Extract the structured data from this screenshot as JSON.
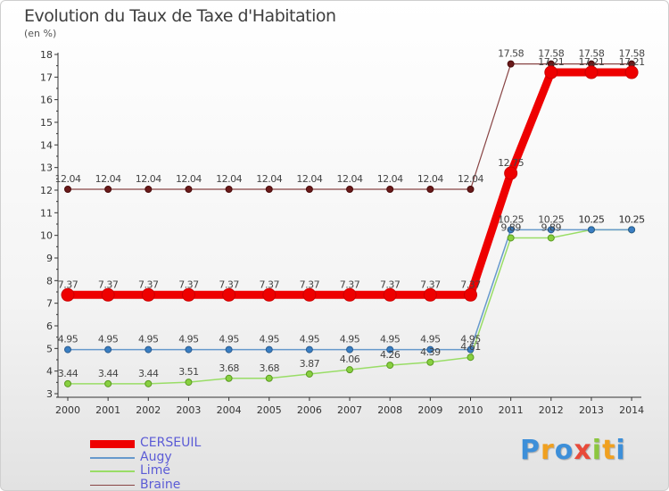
{
  "title": "Evolution du Taux de Taxe d'Habitation",
  "subtitle": "(en %)",
  "logo": {
    "letters": [
      "P",
      "r",
      "o",
      "x",
      "i",
      "t",
      "i"
    ],
    "colors": [
      "#3d8fd9",
      "#f0a020",
      "#3d8fd9",
      "#e84a3a",
      "#8cc63f",
      "#f0a020",
      "#3d8fd9"
    ]
  },
  "chart_data": {
    "type": "line",
    "title": "Evolution du Taux de Taxe d'Habitation",
    "ylabel": "(en %)",
    "xlabel": "",
    "ylim": [
      3,
      18
    ],
    "y_ticks": [
      "3",
      "4",
      "5",
      "6",
      "7",
      "8",
      "9",
      "10",
      "11",
      "12",
      "13",
      "14",
      "15",
      "16",
      "17",
      "18"
    ],
    "x": [
      "2000",
      "2001",
      "2002",
      "2003",
      "2004",
      "2005",
      "2006",
      "2007",
      "2008",
      "2009",
      "2010",
      "2011",
      "2012",
      "2013",
      "2014"
    ],
    "legend_placement": "bottom-left",
    "series": [
      {
        "name": "CERSEUIL",
        "color": "#ee0000",
        "values": [
          7.37,
          7.37,
          7.37,
          7.37,
          7.37,
          7.37,
          7.37,
          7.37,
          7.37,
          7.37,
          7.37,
          12.75,
          17.21,
          17.21,
          17.21
        ],
        "labels": [
          "7.37",
          "7.37",
          "7.37",
          "7.37",
          "7.37",
          "7.37",
          "7.37",
          "7.37",
          "7.37",
          "7.37",
          "7.37",
          "12.75",
          "17.21",
          "17.21",
          "17.21"
        ]
      },
      {
        "name": "Augy",
        "color": "#6699cc",
        "values": [
          4.95,
          4.95,
          4.95,
          4.95,
          4.95,
          4.95,
          4.95,
          4.95,
          4.95,
          4.95,
          4.95,
          10.25,
          10.25,
          10.25,
          10.25
        ],
        "labels": [
          "4.95",
          "4.95",
          "4.95",
          "4.95",
          "4.95",
          "4.95",
          "4.95",
          "4.95",
          "4.95",
          "4.95",
          "4.95",
          "10.25",
          "10.25",
          "10.25",
          "10.25"
        ]
      },
      {
        "name": "Limé",
        "color": "#99dd66",
        "values": [
          3.44,
          3.44,
          3.44,
          3.51,
          3.68,
          3.68,
          3.87,
          4.06,
          4.26,
          4.39,
          4.61,
          9.89,
          9.89,
          10.25,
          10.25
        ],
        "labels": [
          "3.44",
          "3.44",
          "3.44",
          "3.51",
          "3.68",
          "3.68",
          "3.87",
          "4.06",
          "4.26",
          "4.39",
          "4.61",
          "9.89",
          "9.89",
          "10.25",
          "10.25"
        ]
      },
      {
        "name": "Braine",
        "color": "#884444",
        "values": [
          12.04,
          12.04,
          12.04,
          12.04,
          12.04,
          12.04,
          12.04,
          12.04,
          12.04,
          12.04,
          12.04,
          17.58,
          17.58,
          17.58,
          17.58
        ],
        "labels": [
          "12.04",
          "12.04",
          "12.04",
          "12.04",
          "12.04",
          "12.04",
          "12.04",
          "12.04",
          "12.04",
          "12.04",
          "12.04",
          "17.58",
          "17.58",
          "17.58",
          "17.58"
        ]
      }
    ]
  }
}
